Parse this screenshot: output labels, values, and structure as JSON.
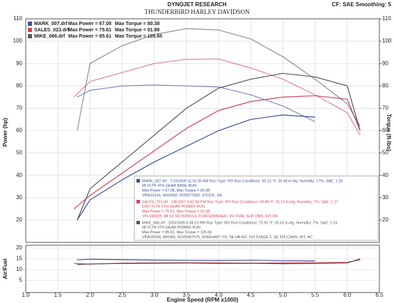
{
  "chart_data": [
    {
      "type": "line",
      "title": "DYNOJET RESEARCH",
      "subtitle": "THUNDERBIRD HARLEY DAVIDSON",
      "note": "CF: SAE  Smoothing: 5",
      "ylabel": "Power (hp)",
      "y2label": "Torque (ft-lbs)",
      "xlim": [
        1,
        6.5
      ],
      "ylim": [
        10,
        110
      ],
      "yticks": [
        20,
        30,
        40,
        50,
        60,
        70,
        80,
        90,
        100,
        110
      ],
      "y2lim": [
        10,
        110
      ],
      "y2ticks": [
        20,
        30,
        40,
        50,
        60,
        70,
        80,
        90,
        100,
        110
      ],
      "grid": true,
      "series": [
        {
          "name": "MARK_007.drf",
          "color": "#3b4f9a",
          "max_power": "Max Power = 67.08",
          "max_torque": "Max Torque = 80.38",
          "x": [
            1.8,
            2.0,
            2.5,
            3.0,
            3.5,
            4.0,
            4.5,
            5.0,
            5.5
          ],
          "power": [
            20,
            29,
            38,
            46,
            53,
            60,
            65,
            67,
            66
          ],
          "torque": [
            75,
            78,
            80,
            80.4,
            80,
            79.5,
            76,
            71,
            64
          ],
          "info": [
            "MARK_007.drf - 7/19/2009 11:52:35 AM  Run Type: RO  Run Conditions: 90.12 °F, 25.48 in-Hg, Humidity: 17%, SAE: 1.20",
            "08 FLTR 4TH GEAR BASE RUN",
            "Max Power = 67.08, Max Torque = 80.38",
            "VIN615141, MI10092, RO5077092, STOCK, DA"
          ]
        },
        {
          "name": "SALES_023.drf",
          "color": "#d0455a",
          "max_power": "Max Power = 75.61",
          "max_torque": "Max Torque = 91.98",
          "x": [
            1.75,
            2.0,
            2.5,
            3.0,
            3.5,
            4.0,
            4.5,
            5.0,
            5.5,
            6.0,
            6.2
          ],
          "power": [
            25,
            31,
            41,
            51,
            61,
            69,
            73,
            75,
            75.6,
            74,
            60
          ],
          "torque": [
            75,
            82,
            86,
            90,
            91.9,
            92,
            88,
            83,
            76,
            68,
            58
          ],
          "info": [
            "SALES_023.drf - 1/8/2007 4:42:58 PM  Run Type: RO  Run Conditions: 59.89 °F, 25.15 in-Hg, Humidity: 7%, SAE: 1.17",
            "2007 FLTR 5TH GEAR POWER RUN",
            "Max Power = 75.61, Max Torque = 91.98",
            "VIN 650025, MI 13, RO 5058114, FORCEWINDER, VH OVAL SLIP-ONS, R/T DA"
          ]
        },
        {
          "name": "MIKE_066.drf",
          "color": "#555555",
          "max_power": "Max Power = 85.61",
          "max_torque": "Max Torque = 105.65",
          "x": [
            1.8,
            2.0,
            2.5,
            3.0,
            3.5,
            4.0,
            4.5,
            5.0,
            5.5,
            6.0,
            6.2
          ],
          "power": [
            20,
            34,
            46,
            58,
            70,
            79,
            83,
            85.6,
            84,
            80,
            60
          ],
          "torque": [
            60,
            90,
            98,
            103,
            105.6,
            105,
            101,
            93,
            83,
            72,
            62
          ],
          "info": [
            "MIKE_066.drf - 2/20/2009 6:04:13 PM  Run Type: RO  Run Conditions: 72.92 °F, 25.10 in-Hg, Humidity: 7%, SAE: 1.19",
            "08 FLTR 5TH GEAR POWER RUN",
            "Max Power = 85.61, Max Torque = 105.65",
            "VIN628168, MI=905, RO#5067575, RINEHART TD, SE HB A/C 103 STAGE 2, SE 255 CAMS, R/T, AC"
          ]
        }
      ]
    },
    {
      "type": "line",
      "ylabel": "Air/Fuel",
      "xlabel": "Engine Speed (RPM x1000)",
      "xlim": [
        1,
        6.5
      ],
      "xticks": [
        {
          "value": 1,
          "label": "1.0"
        },
        1.5,
        {
          "value": 2,
          "label": "2.0"
        },
        2.5,
        {
          "value": 3,
          "label": "3.0"
        },
        3.5,
        {
          "value": 4,
          "label": "4.0"
        },
        4.5,
        {
          "value": 5,
          "label": "5.0"
        },
        5.5,
        {
          "value": 6,
          "label": "6.0"
        },
        6.5
      ],
      "ylim": [
        0,
        20
      ],
      "yticks": [
        5,
        10,
        15,
        20
      ],
      "grid": true,
      "series": [
        {
          "color": "#3b4f9a",
          "x": [
            1.8,
            2.0,
            2.5,
            3.0,
            3.5,
            4.0,
            4.5,
            5.0,
            5.5
          ],
          "values": [
            14.5,
            14.8,
            14.6,
            14.4,
            14.3,
            14.2,
            14.3,
            14.1,
            14.0
          ]
        },
        {
          "color": "#d0455a",
          "x": [
            1.75,
            2.0,
            2.5,
            3.0,
            3.5,
            4.0,
            4.5,
            5.0,
            5.5,
            6.0,
            6.2
          ],
          "values": [
            12.8,
            12.5,
            13.0,
            13.1,
            13.2,
            13.1,
            13.0,
            13.1,
            13.2,
            13.4,
            14.5
          ]
        },
        {
          "color": "#555555",
          "x": [
            1.8,
            2.0,
            2.5,
            3.0,
            3.5,
            4.0,
            4.5,
            5.0,
            5.5,
            6.0,
            6.2
          ],
          "values": [
            12.3,
            12.6,
            12.8,
            12.9,
            13.0,
            12.8,
            12.9,
            12.7,
            12.8,
            13.0,
            15
          ]
        }
      ]
    }
  ]
}
